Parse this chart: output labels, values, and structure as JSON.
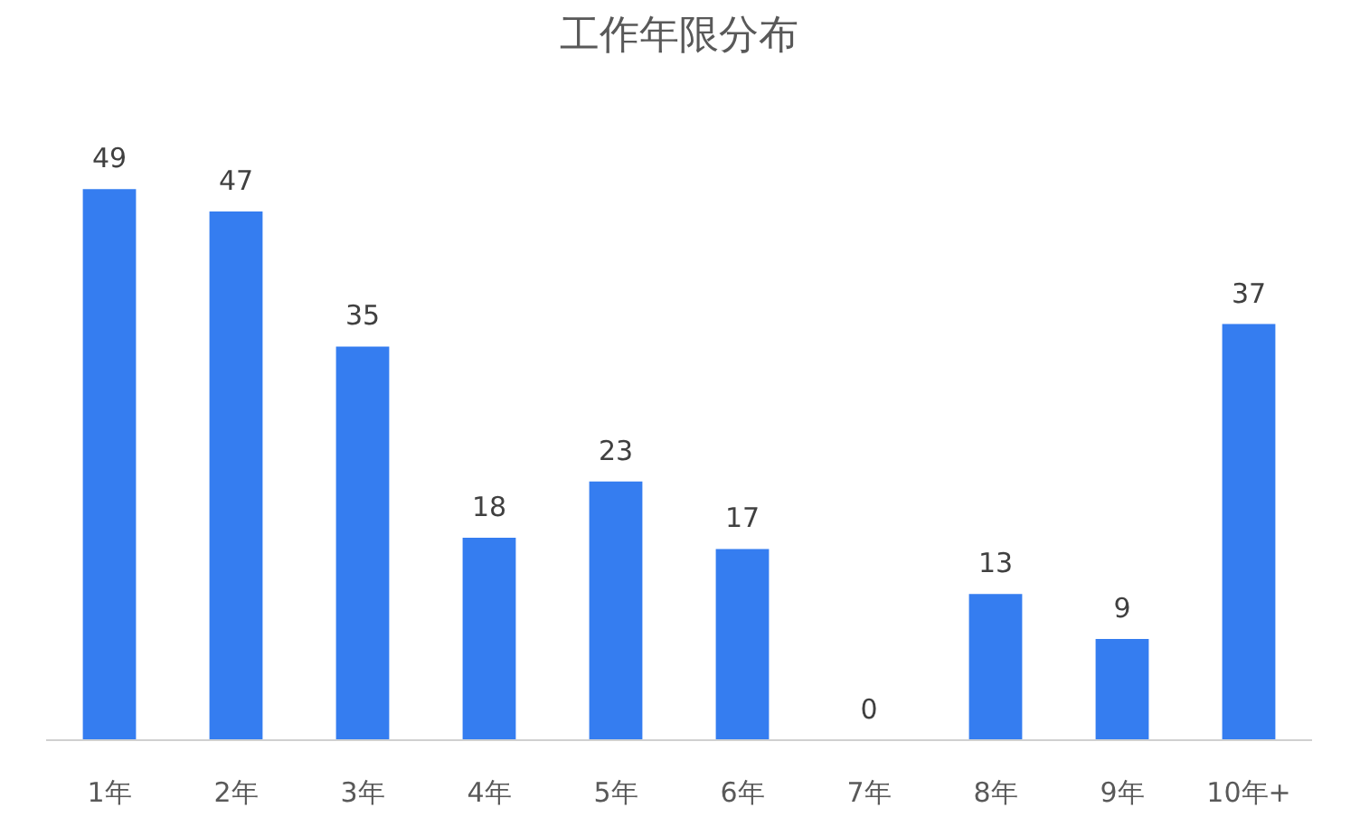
{
  "chart_data": {
    "type": "bar",
    "title": "工作年限分布",
    "categories": [
      "1年",
      "2年",
      "3年",
      "4年",
      "5年",
      "6年",
      "7年",
      "8年",
      "9年",
      "10年+"
    ],
    "values": [
      49,
      47,
      35,
      18,
      23,
      17,
      0,
      13,
      9,
      37
    ],
    "color": "#1f6fee",
    "data_labels": true
  }
}
